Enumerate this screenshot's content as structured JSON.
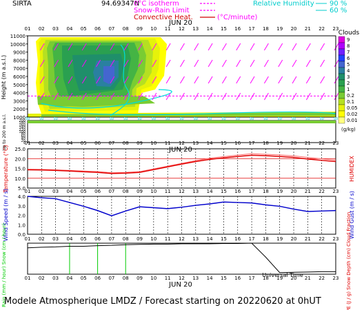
{
  "header": {
    "site": "SIRTA",
    "coord": "94.69347N",
    "legend_lines": [
      {
        "text": "0°C isotherm",
        "color": "#ff00ff"
      },
      {
        "text": "Snow-Rain Limit",
        "color": "#ff00ff"
      },
      {
        "text": "Convective Heat.",
        "color": "#d00000"
      }
    ],
    "convective_unit": "(°C/minute)",
    "rh_label": "Relative Humidity",
    "rh_values": [
      "90 %",
      "60 %"
    ],
    "rh_color": "#00cccc"
  },
  "footer": "Modele Atmospherique LMDZ / Forecast starting on 20220620 at 0hUT",
  "colors": {
    "temperature": "#e00000",
    "humidex": "#e00000",
    "wind": "#0000cc",
    "rain": "#00cc00",
    "snow": "#0000ff",
    "cloud": "#000000",
    "isotherm": "#ff00ff",
    "wind_arrow": "#ff00ff"
  },
  "chart_data": [
    {
      "type": "heatmap",
      "title": "Clouds",
      "date_label": "JUN 20",
      "x_hours": [
        "01",
        "02",
        "03",
        "04",
        "05",
        "06",
        "07",
        "08",
        "09",
        "10",
        "11",
        "12",
        "13",
        "14",
        "15",
        "16",
        "17",
        "18",
        "19",
        "20",
        "21",
        "22",
        "23"
      ],
      "ylabel": "Height (m a.s.l.)",
      "yticks_upper": [
        11000,
        10000,
        9000,
        8000,
        7000,
        6000,
        5000,
        4000,
        3000,
        2000,
        1000
      ],
      "lower_label": "Up to 200 m a.s.l.",
      "yticks_lower": [
        200,
        180,
        160,
        140,
        120,
        100,
        80,
        60,
        40,
        20,
        0
      ],
      "colorbar_levels": [
        "9",
        "8",
        "7",
        "6",
        "5",
        "4",
        "3",
        "2",
        "1",
        "0.2",
        "0.1",
        "0.05",
        "0.02",
        "0.01"
      ],
      "colorbar_colors": [
        "#e000e0",
        "#b000ff",
        "#7020ff",
        "#2040ff",
        "#4466d0",
        "#2a80a0",
        "#1f8f6a",
        "#2aa050",
        "#44b444",
        "#79cc33",
        "#b5e022",
        "#e6f20a",
        "#ffff00",
        "#ffff80"
      ],
      "colorbar_unit": "(g/kg)",
      "isotherm_0C_m": 3600
    },
    {
      "type": "line",
      "xlabel": "JUN 20",
      "ylabel": "Temperature (°C)",
      "ylabel_right": "HUMIDEX",
      "ylim": [
        5,
        25
      ],
      "yticks": [
        5.0,
        10.0,
        15.0,
        20.0,
        25.0
      ],
      "x_hours": [
        "01",
        "02",
        "03",
        "04",
        "05",
        "06",
        "07",
        "08",
        "09",
        "10",
        "11",
        "12",
        "13",
        "14",
        "15",
        "16",
        "17",
        "18",
        "19",
        "20",
        "21",
        "22",
        "23"
      ],
      "series": [
        {
          "values": [
            14.6,
            14.5,
            14.3,
            14.0,
            13.7,
            13.4,
            12.8,
            13.0,
            13.4,
            14.8,
            16.2,
            17.6,
            19.0,
            20.2,
            21.0,
            21.8,
            22.5,
            22.2,
            21.9,
            21.4,
            20.6,
            19.9,
            19.2
          ]
        },
        {
          "values": [
            14.3,
            14.2,
            14.0,
            13.7,
            13.3,
            13.0,
            12.4,
            12.6,
            13.0,
            14.4,
            15.8,
            17.2,
            18.5,
            19.6,
            20.4,
            21.1,
            21.7,
            21.5,
            21.1,
            20.6,
            19.8,
            19.1,
            18.5
          ]
        }
      ]
    },
    {
      "type": "line",
      "ylabel": "Wind Speed (m / s)",
      "ylabel_right": "Wind Gust (m / s)",
      "ylim": [
        0,
        4
      ],
      "yticks": [
        0.0,
        1.0,
        2.0,
        3.0,
        4.0
      ],
      "x_hours": [
        "01",
        "02",
        "03",
        "04",
        "05",
        "06",
        "07",
        "08",
        "09",
        "10",
        "11",
        "12",
        "13",
        "14",
        "15",
        "16",
        "17",
        "18",
        "19",
        "20",
        "21",
        "22",
        "23"
      ],
      "series": [
        {
          "values": [
            4.0,
            3.85,
            3.75,
            3.35,
            2.95,
            2.5,
            1.95,
            2.45,
            2.9,
            2.8,
            2.7,
            2.85,
            3.05,
            3.2,
            3.4,
            3.35,
            3.3,
            3.1,
            2.95,
            2.65,
            2.4,
            2.45,
            2.5
          ]
        }
      ]
    },
    {
      "type": "line",
      "xlabel": "JUN 20",
      "ylabel": "Rain (mm / hour) Snow (cm / hour)",
      "ylabel_right": "CAPE (J / g) Snow Depth (cm) Cloud Fraction",
      "x_hours": [
        "01",
        "02",
        "03",
        "04",
        "05",
        "06",
        "07",
        "08",
        "09",
        "10",
        "11",
        "12",
        "13",
        "14",
        "15",
        "16",
        "17",
        "18",
        "19",
        "20",
        "21",
        "22",
        "23"
      ],
      "ylim": [
        0,
        1
      ],
      "cloud_fraction": [
        0.85,
        0.87,
        0.88,
        0.9,
        0.9,
        0.92,
        0.93,
        0.95,
        0.96,
        0.97,
        0.97,
        0.98,
        0.98,
        0.98,
        0.99,
        0.99,
        1.0,
        0.55,
        0.05,
        0.06,
        0.07,
        0.08,
        0.08
      ],
      "rain_spikes_hours": [
        "04",
        "06",
        "08"
      ],
      "universal_time_label": "Universal Time"
    }
  ]
}
